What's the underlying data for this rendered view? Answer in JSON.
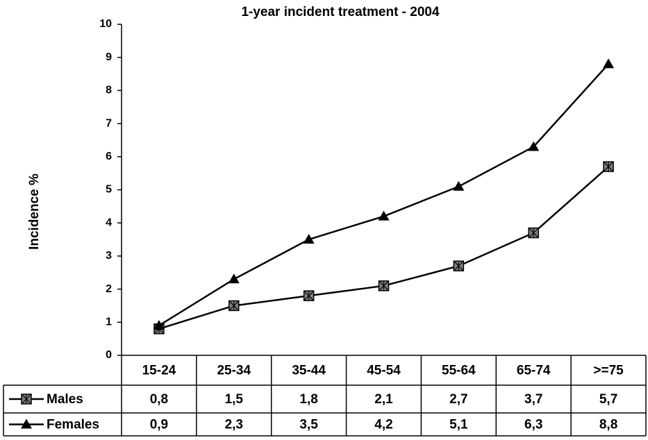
{
  "chart_data": {
    "type": "line",
    "title": "1-year incident treatment - 2004",
    "ylabel": "Incidence %",
    "categories": [
      "15-24",
      "25-34",
      "35-44",
      "45-54",
      "55-64",
      "65-74",
      ">=75"
    ],
    "series": [
      {
        "name": "Males",
        "color": "#000000",
        "marker": "square",
        "values": [
          0.8,
          1.5,
          1.8,
          2.1,
          2.7,
          3.7,
          5.7
        ],
        "value_labels": [
          "0,8",
          "1,5",
          "1,8",
          "2,1",
          "2,7",
          "3,7",
          "5,7"
        ]
      },
      {
        "name": "Females",
        "color": "#000000",
        "marker": "triangle",
        "values": [
          0.9,
          2.3,
          3.5,
          4.2,
          5.1,
          6.3,
          8.8
        ],
        "value_labels": [
          "0,9",
          "2,3",
          "3,5",
          "4,2",
          "5,1",
          "6,3",
          "8,8"
        ]
      }
    ],
    "ylim": [
      0,
      10
    ],
    "yticks": [
      0,
      1,
      2,
      3,
      4,
      5,
      6,
      7,
      8,
      9,
      10
    ],
    "grid": false
  }
}
